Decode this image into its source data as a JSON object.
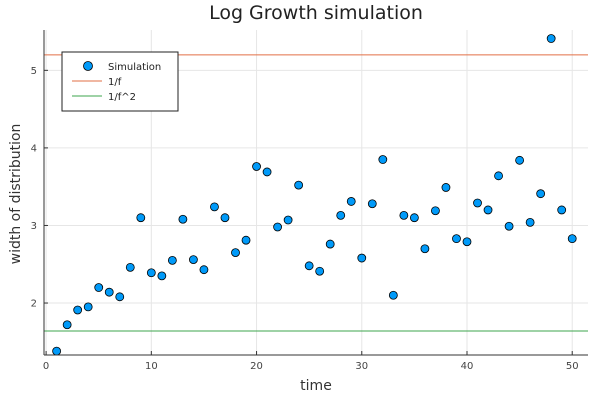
{
  "chart_data": {
    "type": "scatter",
    "title": "Log Growth simulation",
    "xlabel": "time",
    "ylabel": "width of distribution",
    "xlim": [
      -0.2,
      51.5
    ],
    "ylim": [
      1.33,
      5.52
    ],
    "xticks": [
      0,
      10,
      20,
      30,
      40,
      50
    ],
    "yticks": [
      2,
      3,
      4,
      5
    ],
    "grid": true,
    "legend_position": "top-left",
    "series": [
      {
        "name": "Simulation",
        "kind": "scatter",
        "color": "#009af9",
        "x": [
          1,
          2,
          3,
          4,
          5,
          6,
          7,
          8,
          9,
          10,
          11,
          12,
          13,
          14,
          15,
          16,
          17,
          18,
          19,
          20,
          21,
          22,
          23,
          24,
          25,
          26,
          27,
          28,
          29,
          30,
          31,
          32,
          33,
          34,
          35,
          36,
          37,
          38,
          39,
          40,
          41,
          42,
          43,
          44,
          45,
          46,
          47,
          48,
          49,
          50
        ],
        "y": [
          1.38,
          1.72,
          1.91,
          1.95,
          2.2,
          2.14,
          2.08,
          2.46,
          3.1,
          2.39,
          2.35,
          2.55,
          3.08,
          2.56,
          2.43,
          3.24,
          3.1,
          2.65,
          2.81,
          3.76,
          3.69,
          2.98,
          3.07,
          3.52,
          2.48,
          2.41,
          2.76,
          3.13,
          3.31,
          2.58,
          3.28,
          3.85,
          2.1,
          3.13,
          3.1,
          2.7,
          3.19,
          3.49,
          2.83,
          2.79,
          3.29,
          3.2,
          3.64,
          2.99,
          3.84,
          3.04,
          3.41,
          5.41,
          3.2,
          2.83
        ]
      },
      {
        "name": "1/f",
        "kind": "hline",
        "color": "#e26f46",
        "y": 5.2
      },
      {
        "name": "1/f^2",
        "kind": "hline",
        "color": "#3da44d",
        "y": 1.64
      }
    ]
  }
}
